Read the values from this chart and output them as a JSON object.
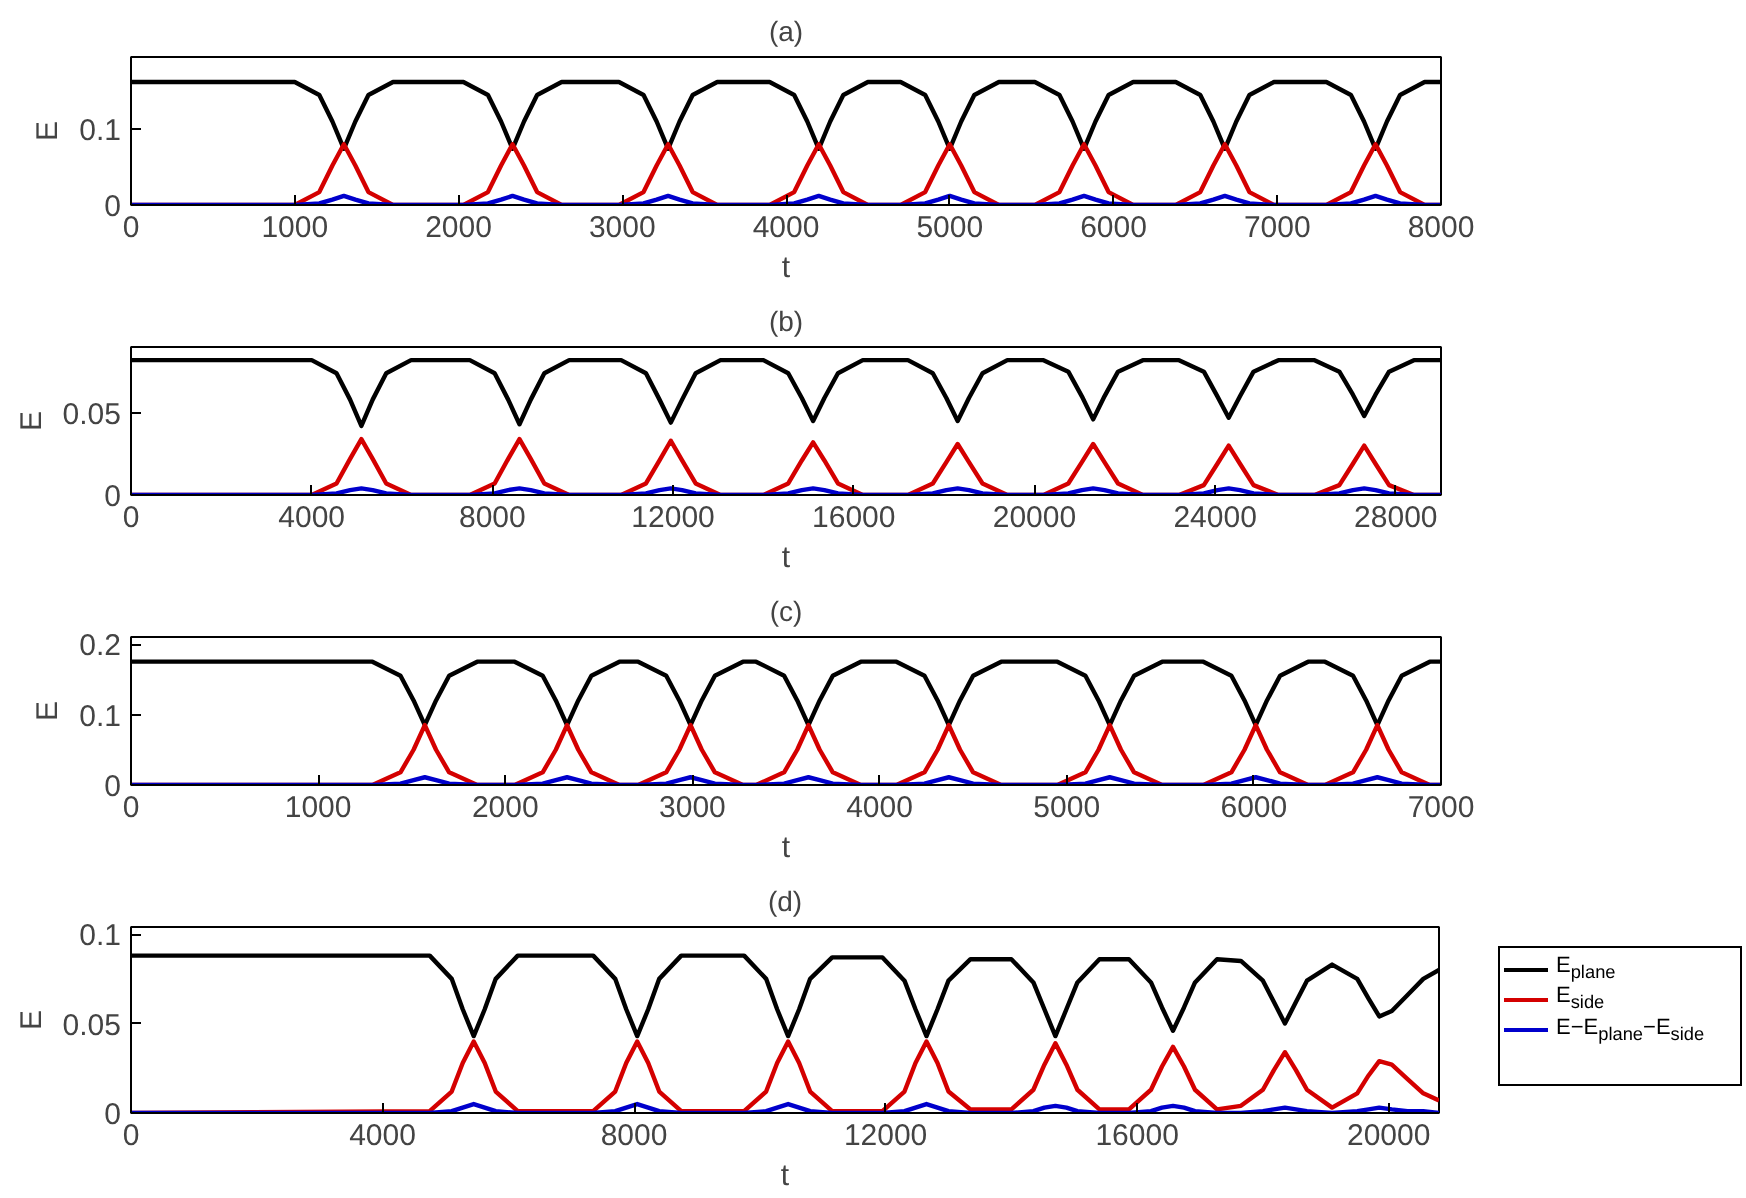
{
  "chart_data": [
    {
      "type": "line",
      "title": "(a)",
      "xlabel": "t",
      "ylabel": "E",
      "xlim": [
        0,
        8000
      ],
      "ylim": [
        0,
        0.195
      ],
      "xticks": [
        0,
        1000,
        2000,
        3000,
        4000,
        5000,
        6000,
        7000,
        8000
      ],
      "yticks": [
        0,
        0.1
      ],
      "x": [
        0,
        1000,
        1150,
        1230,
        1300,
        1370,
        1450,
        1600,
        2030,
        2180,
        2260,
        2330,
        2400,
        2480,
        2630,
        2980,
        3130,
        3210,
        3280,
        3350,
        3430,
        3580,
        3900,
        4050,
        4130,
        4200,
        4270,
        4350,
        4500,
        4700,
        4850,
        4930,
        5000,
        5070,
        5150,
        5300,
        5520,
        5670,
        5750,
        5820,
        5890,
        5970,
        6120,
        6380,
        6530,
        6610,
        6680,
        6750,
        6830,
        6980,
        7300,
        7450,
        7530,
        7600,
        7670,
        7750,
        7900,
        8000
      ],
      "series": [
        {
          "color": "#000000",
          "values": [
            0.162,
            0.162,
            0.145,
            0.11,
            0.074,
            0.11,
            0.145,
            0.162,
            0.162,
            0.145,
            0.11,
            0.074,
            0.11,
            0.145,
            0.162,
            0.162,
            0.145,
            0.11,
            0.074,
            0.11,
            0.145,
            0.162,
            0.162,
            0.145,
            0.11,
            0.074,
            0.11,
            0.145,
            0.162,
            0.162,
            0.145,
            0.11,
            0.074,
            0.11,
            0.145,
            0.162,
            0.162,
            0.145,
            0.11,
            0.074,
            0.11,
            0.145,
            0.162,
            0.162,
            0.145,
            0.11,
            0.074,
            0.11,
            0.145,
            0.162,
            0.162,
            0.145,
            0.11,
            0.074,
            0.11,
            0.145,
            0.162,
            0.162
          ]
        },
        {
          "color": "#d40000",
          "values": [
            0,
            0,
            0.017,
            0.052,
            0.08,
            0.052,
            0.017,
            0,
            0,
            0.017,
            0.052,
            0.08,
            0.052,
            0.017,
            0,
            0,
            0.017,
            0.052,
            0.08,
            0.052,
            0.017,
            0,
            0,
            0.017,
            0.052,
            0.08,
            0.052,
            0.017,
            0,
            0,
            0.017,
            0.052,
            0.08,
            0.052,
            0.017,
            0,
            0,
            0.017,
            0.052,
            0.08,
            0.052,
            0.017,
            0,
            0,
            0.017,
            0.052,
            0.08,
            0.052,
            0.017,
            0,
            0,
            0.017,
            0.052,
            0.08,
            0.052,
            0.017,
            0,
            0
          ]
        },
        {
          "color": "#0000cc",
          "values": [
            0,
            0,
            0.002,
            0.007,
            0.012,
            0.007,
            0.002,
            0,
            0,
            0.002,
            0.007,
            0.012,
            0.007,
            0.002,
            0,
            0,
            0.002,
            0.007,
            0.012,
            0.007,
            0.002,
            0,
            0,
            0.002,
            0.007,
            0.012,
            0.007,
            0.002,
            0,
            0,
            0.002,
            0.007,
            0.012,
            0.007,
            0.002,
            0,
            0,
            0.002,
            0.007,
            0.012,
            0.007,
            0.002,
            0,
            0,
            0.002,
            0.007,
            0.012,
            0.007,
            0.002,
            0,
            0,
            0.002,
            0.007,
            0.012,
            0.007,
            0.002,
            0,
            0
          ]
        }
      ]
    },
    {
      "type": "line",
      "title": "(b)",
      "xlabel": "t",
      "ylabel": "E",
      "xlim": [
        0,
        29000
      ],
      "ylim": [
        0,
        0.09
      ],
      "xticks": [
        0,
        4000,
        8000,
        12000,
        16000,
        20000,
        24000,
        28000
      ],
      "yticks": [
        0,
        0.05
      ],
      "x": [
        0,
        4000,
        4550,
        4850,
        5100,
        5350,
        5650,
        6200,
        7500,
        8050,
        8350,
        8600,
        8850,
        9150,
        9700,
        10850,
        11400,
        11700,
        11950,
        12200,
        12500,
        13050,
        14000,
        14550,
        14850,
        15100,
        15350,
        15650,
        16200,
        17200,
        17750,
        18050,
        18300,
        18550,
        18850,
        19400,
        20200,
        20750,
        21050,
        21300,
        21550,
        21850,
        22400,
        23200,
        23750,
        24050,
        24300,
        24550,
        24850,
        25400,
        26200,
        26750,
        27050,
        27300,
        27550,
        27850,
        28400,
        29000
      ],
      "series": [
        {
          "color": "#000000",
          "values": [
            0.082,
            0.082,
            0.074,
            0.058,
            0.042,
            0.058,
            0.074,
            0.082,
            0.082,
            0.074,
            0.058,
            0.043,
            0.058,
            0.074,
            0.082,
            0.082,
            0.074,
            0.058,
            0.044,
            0.058,
            0.074,
            0.082,
            0.082,
            0.074,
            0.059,
            0.045,
            0.059,
            0.074,
            0.082,
            0.082,
            0.074,
            0.059,
            0.045,
            0.059,
            0.074,
            0.082,
            0.082,
            0.075,
            0.06,
            0.046,
            0.06,
            0.075,
            0.082,
            0.082,
            0.075,
            0.06,
            0.047,
            0.06,
            0.075,
            0.082,
            0.082,
            0.075,
            0.061,
            0.048,
            0.061,
            0.075,
            0.082,
            0.082
          ]
        },
        {
          "color": "#d40000",
          "values": [
            0,
            0,
            0.007,
            0.022,
            0.034,
            0.022,
            0.007,
            0,
            0,
            0.007,
            0.022,
            0.034,
            0.022,
            0.007,
            0,
            0,
            0.007,
            0.021,
            0.033,
            0.021,
            0.007,
            0,
            0,
            0.007,
            0.021,
            0.032,
            0.021,
            0.007,
            0,
            0,
            0.007,
            0.02,
            0.031,
            0.02,
            0.007,
            0,
            0,
            0.007,
            0.02,
            0.031,
            0.02,
            0.007,
            0,
            0,
            0.006,
            0.019,
            0.03,
            0.019,
            0.006,
            0,
            0,
            0.006,
            0.019,
            0.03,
            0.019,
            0.006,
            0,
            0
          ]
        },
        {
          "color": "#0000cc",
          "values": [
            0,
            0,
            0.001,
            0.003,
            0.004,
            0.003,
            0.001,
            0,
            0,
            0.001,
            0.003,
            0.004,
            0.003,
            0.001,
            0,
            0,
            0.001,
            0.003,
            0.004,
            0.003,
            0.001,
            0,
            0,
            0.001,
            0.003,
            0.004,
            0.003,
            0.001,
            0,
            0,
            0.001,
            0.003,
            0.004,
            0.003,
            0.001,
            0,
            0,
            0.001,
            0.003,
            0.004,
            0.003,
            0.001,
            0,
            0,
            0.001,
            0.003,
            0.004,
            0.003,
            0.001,
            0,
            0,
            0.001,
            0.003,
            0.004,
            0.003,
            0.001,
            0,
            0
          ]
        }
      ]
    },
    {
      "type": "line",
      "title": "(c)",
      "xlabel": "t",
      "ylabel": "E",
      "xlim": [
        0,
        7000
      ],
      "ylim": [
        0,
        0.21
      ],
      "xticks": [
        0,
        1000,
        2000,
        3000,
        4000,
        5000,
        6000,
        7000
      ],
      "yticks": [
        0,
        0.1,
        0.2
      ],
      "x": [
        0,
        1290,
        1440,
        1510,
        1570,
        1630,
        1700,
        1850,
        2050,
        2200,
        2270,
        2330,
        2390,
        2460,
        2610,
        2710,
        2860,
        2930,
        2990,
        3050,
        3120,
        3270,
        3340,
        3490,
        3560,
        3620,
        3680,
        3750,
        3900,
        4090,
        4240,
        4310,
        4370,
        4430,
        4500,
        4650,
        4950,
        5100,
        5170,
        5230,
        5290,
        5360,
        5510,
        5730,
        5880,
        5950,
        6010,
        6070,
        6140,
        6290,
        6380,
        6530,
        6600,
        6660,
        6720,
        6790,
        6940,
        7000
      ],
      "series": [
        {
          "color": "#000000",
          "values": [
            0.175,
            0.175,
            0.155,
            0.12,
            0.085,
            0.12,
            0.155,
            0.175,
            0.175,
            0.155,
            0.12,
            0.085,
            0.12,
            0.155,
            0.175,
            0.175,
            0.155,
            0.12,
            0.085,
            0.12,
            0.155,
            0.175,
            0.175,
            0.155,
            0.12,
            0.085,
            0.12,
            0.155,
            0.175,
            0.175,
            0.155,
            0.12,
            0.085,
            0.12,
            0.155,
            0.175,
            0.175,
            0.155,
            0.12,
            0.085,
            0.12,
            0.155,
            0.175,
            0.175,
            0.155,
            0.12,
            0.085,
            0.12,
            0.155,
            0.175,
            0.175,
            0.155,
            0.12,
            0.085,
            0.12,
            0.155,
            0.175,
            0.175
          ]
        },
        {
          "color": "#d40000",
          "values": [
            0,
            0,
            0.018,
            0.05,
            0.085,
            0.05,
            0.018,
            0,
            0,
            0.018,
            0.05,
            0.085,
            0.05,
            0.018,
            0,
            0,
            0.018,
            0.05,
            0.085,
            0.05,
            0.018,
            0,
            0,
            0.018,
            0.05,
            0.085,
            0.05,
            0.018,
            0,
            0,
            0.018,
            0.05,
            0.085,
            0.05,
            0.018,
            0,
            0,
            0.018,
            0.05,
            0.085,
            0.05,
            0.018,
            0,
            0,
            0.018,
            0.05,
            0.085,
            0.05,
            0.018,
            0,
            0,
            0.018,
            0.05,
            0.085,
            0.05,
            0.018,
            0,
            0
          ]
        },
        {
          "color": "#0000cc",
          "values": [
            0,
            0,
            0.002,
            0.007,
            0.011,
            0.007,
            0.002,
            0,
            0,
            0.002,
            0.007,
            0.011,
            0.007,
            0.002,
            0,
            0,
            0.002,
            0.007,
            0.011,
            0.007,
            0.002,
            0,
            0,
            0.002,
            0.007,
            0.011,
            0.007,
            0.002,
            0,
            0,
            0.002,
            0.007,
            0.011,
            0.007,
            0.002,
            0,
            0,
            0.002,
            0.007,
            0.011,
            0.007,
            0.002,
            0,
            0,
            0.002,
            0.007,
            0.011,
            0.007,
            0.002,
            0,
            0,
            0.002,
            0.007,
            0.011,
            0.007,
            0.002,
            0,
            0
          ]
        }
      ]
    },
    {
      "type": "line",
      "title": "(d)",
      "xlabel": "t",
      "ylabel": "E",
      "xlim": [
        0,
        20800
      ],
      "ylim": [
        0,
        0.104
      ],
      "xticks": [
        0,
        4000,
        8000,
        12000,
        16000,
        20000
      ],
      "yticks": [
        0,
        0.05,
        0.1
      ],
      "legend": "right",
      "x": [
        0,
        4750,
        5100,
        5275,
        5450,
        5625,
        5800,
        6150,
        7350,
        7700,
        7875,
        8050,
        8225,
        8400,
        8750,
        9750,
        10100,
        10275,
        10450,
        10625,
        10800,
        11150,
        11950,
        12300,
        12475,
        12650,
        12825,
        13000,
        13350,
        14000,
        14350,
        14525,
        14700,
        14875,
        15050,
        15400,
        15870,
        16220,
        16395,
        16570,
        16745,
        16920,
        17270,
        17650,
        18000,
        18175,
        18350,
        18525,
        18700,
        19100,
        19500,
        19680,
        19850,
        20050,
        20300,
        20550,
        20800
      ],
      "series": [
        {
          "name": "E$_{plane}$",
          "color": "#000000",
          "values": [
            0.088,
            0.088,
            0.075,
            0.058,
            0.043,
            0.058,
            0.075,
            0.088,
            0.088,
            0.075,
            0.058,
            0.043,
            0.058,
            0.075,
            0.088,
            0.088,
            0.075,
            0.058,
            0.043,
            0.058,
            0.075,
            0.087,
            0.087,
            0.074,
            0.058,
            0.043,
            0.058,
            0.074,
            0.086,
            0.086,
            0.073,
            0.058,
            0.043,
            0.058,
            0.073,
            0.086,
            0.086,
            0.073,
            0.059,
            0.046,
            0.059,
            0.073,
            0.086,
            0.085,
            0.074,
            0.062,
            0.05,
            0.062,
            0.074,
            0.083,
            0.075,
            0.064,
            0.054,
            0.057,
            0.066,
            0.075,
            0.08
          ]
        },
        {
          "name": "E$_{side}$",
          "color": "#d40000",
          "values": [
            0,
            0.001,
            0.012,
            0.028,
            0.04,
            0.028,
            0.012,
            0.001,
            0.001,
            0.012,
            0.028,
            0.04,
            0.028,
            0.012,
            0.001,
            0.001,
            0.012,
            0.028,
            0.04,
            0.028,
            0.012,
            0.001,
            0.001,
            0.012,
            0.028,
            0.04,
            0.028,
            0.012,
            0.002,
            0.002,
            0.013,
            0.027,
            0.039,
            0.027,
            0.013,
            0.002,
            0.002,
            0.013,
            0.026,
            0.037,
            0.026,
            0.013,
            0.002,
            0.004,
            0.013,
            0.024,
            0.034,
            0.024,
            0.013,
            0.003,
            0.011,
            0.021,
            0.029,
            0.027,
            0.019,
            0.011,
            0.007
          ]
        },
        {
          "name": "E−E$_{plane}$−E$_{side}$",
          "color": "#0000cc",
          "values": [
            0,
            0,
            0.001,
            0.003,
            0.005,
            0.003,
            0.001,
            0,
            0,
            0.001,
            0.003,
            0.005,
            0.003,
            0.001,
            0,
            0,
            0.001,
            0.003,
            0.005,
            0.003,
            0.001,
            0,
            0,
            0.001,
            0.003,
            0.005,
            0.003,
            0.001,
            0,
            0,
            0.001,
            0.003,
            0.004,
            0.003,
            0.001,
            0,
            0,
            0.001,
            0.003,
            0.004,
            0.003,
            0.001,
            0,
            0,
            0.001,
            0.002,
            0.003,
            0.002,
            0.001,
            0,
            0.001,
            0.002,
            0.003,
            0.002,
            0.001,
            0.001,
            0
          ]
        }
      ]
    }
  ]
}
